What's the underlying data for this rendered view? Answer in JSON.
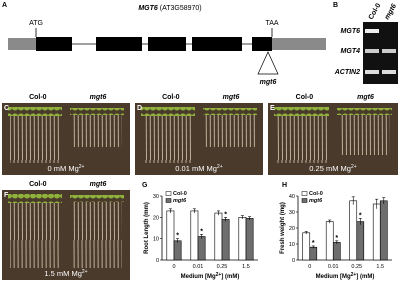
{
  "figure": {
    "panel_letters": [
      "A",
      "B",
      "C",
      "D",
      "E",
      "F"
    ],
    "gene": {
      "title_gene": "MGT6",
      "title_locus": "(AT3G58970)",
      "start": "ATG",
      "stop": "TAA",
      "mutant": "mgt6"
    },
    "gel": {
      "lanes": [
        "Col-0",
        "mgt6"
      ],
      "rows": [
        "MGT6",
        "MGT4",
        "ACTIN2"
      ]
    },
    "photos": [
      {
        "wt": "Col-0",
        "mut": "mgt6",
        "cond": "0 mM Mg",
        "sup": "2+"
      },
      {
        "wt": "Col-0",
        "mut": "mgt6",
        "cond": "0.01 mM Mg",
        "sup": "2+"
      },
      {
        "wt": "Col-0",
        "mut": "mgt6",
        "cond": "0.25 mM Mg",
        "sup": "2+"
      },
      {
        "wt": "Col-0",
        "mut": "mgt6",
        "cond": "1.5 mM Mg",
        "sup": "2+"
      }
    ]
  },
  "chart_data": [
    {
      "type": "bar",
      "panel": "G",
      "ylabel": "Root Length (mm)",
      "xlabel": "Medium [Mg",
      "xlabel_sup": "2+",
      "xlabel_tail": "] (mM)",
      "categories": [
        "0",
        "0.01",
        "0.25",
        "1.5"
      ],
      "ylim": [
        0,
        30
      ],
      "yticks": [
        0,
        10,
        20,
        30
      ],
      "series": [
        {
          "name": "Col-0",
          "color": "#ffffff",
          "values": [
            23,
            23,
            22,
            20
          ],
          "errors": [
            1,
            1,
            1,
            0.8
          ]
        },
        {
          "name": "mgt6",
          "color": "#6e6e6e",
          "values": [
            9,
            11,
            19,
            19.5
          ],
          "errors": [
            1,
            1,
            1,
            0.8
          ]
        }
      ],
      "significance": [
        "*",
        "*",
        "*",
        null
      ]
    },
    {
      "type": "bar",
      "panel": "H",
      "ylabel": "Fresh weight (mg)",
      "xlabel": "Medium [Mg",
      "xlabel_sup": "2+",
      "xlabel_tail": "] (mM)",
      "categories": [
        "0",
        "0.01",
        "0.25",
        "1.5"
      ],
      "ylim": [
        0,
        40
      ],
      "yticks": [
        0,
        10,
        20,
        30,
        40
      ],
      "series": [
        {
          "name": "Col-0",
          "color": "#ffffff",
          "values": [
            17,
            24,
            37,
            35
          ],
          "errors": [
            0.8,
            1,
            2.5,
            3
          ]
        },
        {
          "name": "mgt6",
          "color": "#6e6e6e",
          "values": [
            8,
            11,
            24,
            37
          ],
          "errors": [
            0.8,
            1,
            2,
            2
          ]
        }
      ],
      "significance": [
        "*",
        "*",
        "*",
        null
      ]
    }
  ]
}
